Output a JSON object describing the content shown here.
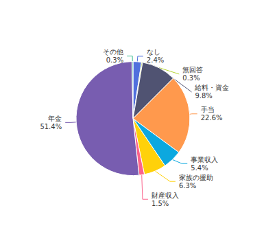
{
  "chart_data": {
    "type": "pie",
    "categories": [
      "なし",
      "無回答",
      "給料・資金",
      "手当",
      "事業収入",
      "家族の援助",
      "財産収入",
      "年金",
      "その他"
    ],
    "values": [
      2.4,
      0.3,
      9.8,
      22.6,
      5.4,
      6.3,
      1.5,
      51.4,
      0.3
    ],
    "value_labels": [
      "2.4%",
      "0.3%",
      "9.8%",
      "22.6%",
      "5.4%",
      "6.3%",
      "1.5%",
      "51.4%",
      "0.3%"
    ],
    "data_labels": true
  }
}
